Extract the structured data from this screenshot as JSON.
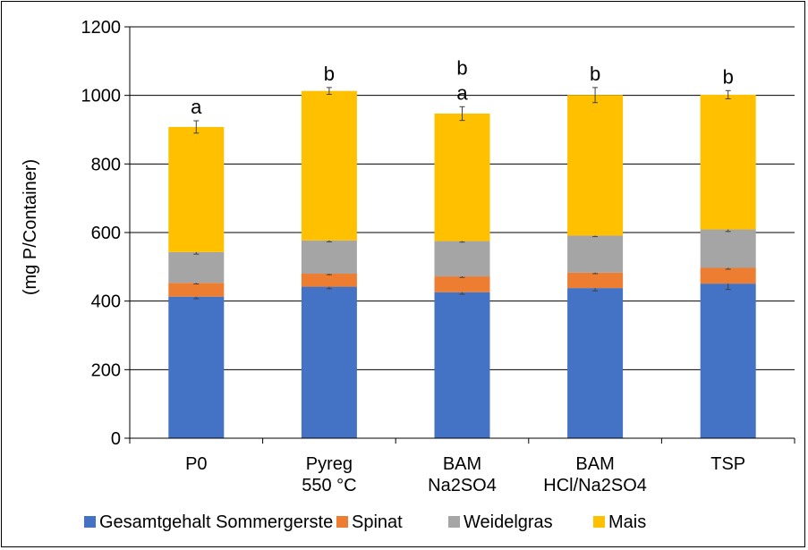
{
  "chart_data": {
    "type": "bar",
    "stacked": true,
    "title": "",
    "xlabel": "",
    "ylabel": "(mg P/Container)",
    "ylim": [
      0,
      1200
    ],
    "yticks": [
      0,
      200,
      400,
      600,
      800,
      1000,
      1200
    ],
    "grid": true,
    "legend_position": "bottom",
    "categories": [
      [
        "P0"
      ],
      [
        "Pyreg",
        "550 °C"
      ],
      [
        "BAM",
        "Na2SO4"
      ],
      [
        "BAM",
        "HCl/Na2SO4"
      ],
      [
        "TSP"
      ]
    ],
    "series": [
      {
        "name": "Gesamtgehalt Sommergerste",
        "color": "#4472C4",
        "values": [
          413,
          442,
          426,
          438,
          451
        ],
        "errors": [
          6,
          6,
          6,
          8,
          17
        ]
      },
      {
        "name": "Spinat",
        "color": "#ED7D31",
        "values": [
          40,
          38,
          46,
          45,
          46
        ],
        "errors": [
          3,
          3,
          3,
          3,
          4
        ]
      },
      {
        "name": "Weidelgras",
        "color": "#A5A5A5",
        "values": [
          90,
          97,
          103,
          108,
          112
        ],
        "errors": [
          6,
          4,
          3,
          3,
          6
        ]
      },
      {
        "name": "Mais",
        "color": "#FFC000",
        "values": [
          365,
          436,
          372,
          410,
          393
        ],
        "errors": [
          18,
          10,
          20,
          22,
          12
        ]
      }
    ],
    "significance_labels": [
      [
        "a"
      ],
      [
        "b"
      ],
      [
        "b",
        "a"
      ],
      [
        "b"
      ],
      [
        "b"
      ]
    ]
  }
}
